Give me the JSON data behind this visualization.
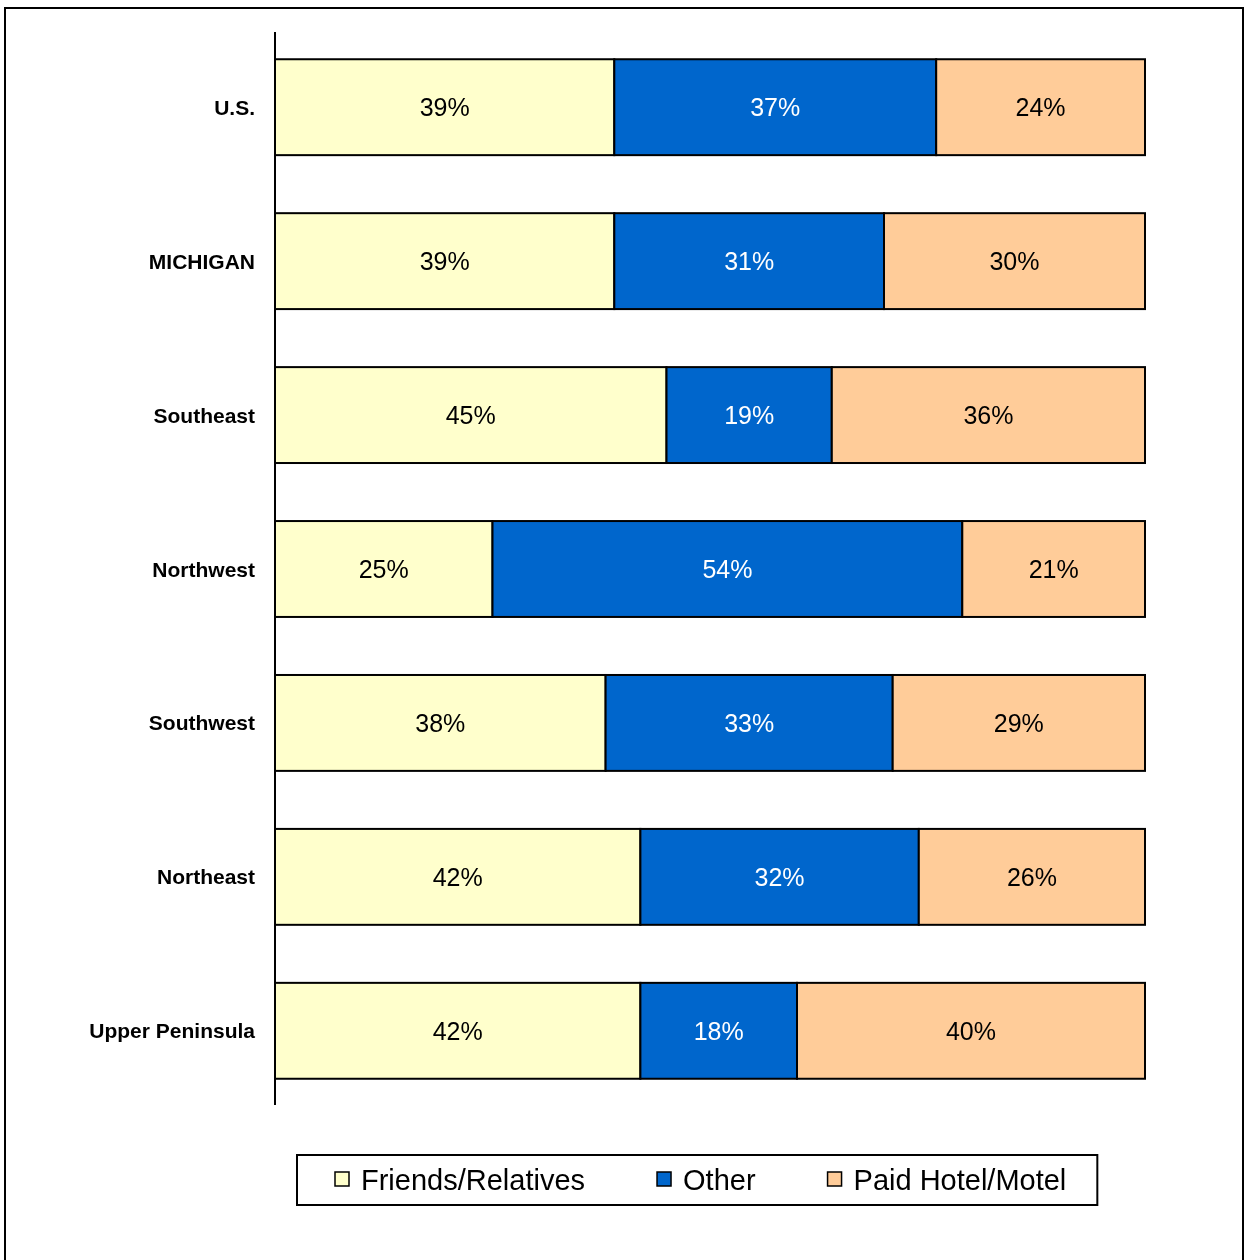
{
  "chart_data": {
    "type": "bar",
    "orientation": "horizontal",
    "stacked": true,
    "categories": [
      "U.S.",
      "MICHIGAN",
      "Southeast",
      "Northwest",
      "Southwest",
      "Northeast",
      "Upper Peninsula"
    ],
    "series": [
      {
        "name": "Friends/Relatives",
        "color": "#ffffcc",
        "values": [
          39,
          39,
          45,
          25,
          38,
          42,
          42
        ],
        "value_labels": [
          "39%",
          "39%",
          "45%",
          "25%",
          "38%",
          "42%",
          "42%"
        ]
      },
      {
        "name": "Other",
        "color": "#0066cc",
        "values": [
          37,
          31,
          19,
          54,
          33,
          32,
          18
        ],
        "value_labels": [
          "37%",
          "31%",
          "19%",
          "54%",
          "33%",
          "32%",
          "18%"
        ]
      },
      {
        "name": "Paid Hotel/Motel",
        "color": "#ffcc99",
        "values": [
          24,
          30,
          36,
          21,
          29,
          26,
          40
        ],
        "value_labels": [
          "24%",
          "30%",
          "36%",
          "21%",
          "29%",
          "26%",
          "40%"
        ]
      }
    ],
    "legend": "bottom"
  }
}
